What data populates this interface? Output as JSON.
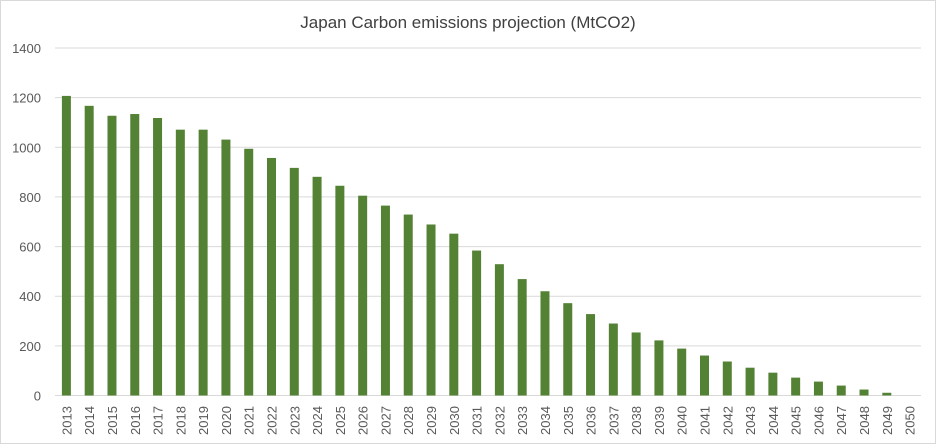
{
  "chart_data": {
    "type": "bar",
    "title": "Japan Carbon emissions projection (MtCO2)",
    "xlabel": "",
    "ylabel": "",
    "ylim": [
      0,
      1400
    ],
    "yticks": [
      0,
      200,
      400,
      600,
      800,
      1000,
      1200,
      1400
    ],
    "grid": true,
    "bar_color": "#548235",
    "categories": [
      "2013",
      "2014",
      "2015",
      "2016",
      "2017",
      "2018",
      "2019",
      "2020",
      "2021",
      "2022",
      "2023",
      "2024",
      "2025",
      "2026",
      "2027",
      "2028",
      "2029",
      "2030",
      "2031",
      "2032",
      "2033",
      "2034",
      "2035",
      "2036",
      "2037",
      "2038",
      "2039",
      "2040",
      "2041",
      "2042",
      "2043",
      "2044",
      "2045",
      "2046",
      "2047",
      "2048",
      "2049",
      "2050"
    ],
    "values": [
      1207,
      1167,
      1127,
      1134,
      1118,
      1071,
      1071,
      1031,
      994,
      957,
      917,
      881,
      845,
      805,
      765,
      729,
      689,
      652,
      584,
      529,
      469,
      420,
      372,
      328,
      290,
      254,
      222,
      189,
      161,
      137,
      112,
      92,
      72,
      56,
      40,
      24,
      11,
      0
    ]
  }
}
